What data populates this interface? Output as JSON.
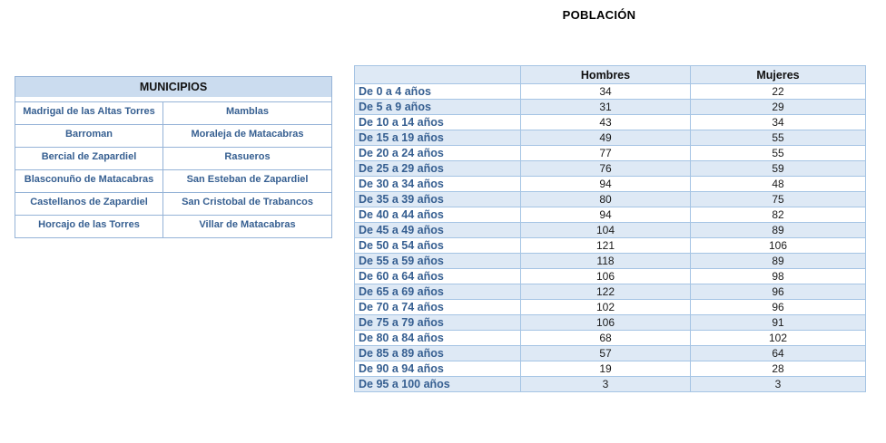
{
  "title": "POBLACIÓN",
  "municipios_table": {
    "header": "MUNICIPIOS",
    "rows": [
      [
        "Madrigal de las Altas Torres",
        "Mamblas"
      ],
      [
        "Barroman",
        "Moraleja de Matacabras"
      ],
      [
        "Bercial de Zapardiel",
        "Rasueros"
      ],
      [
        "Blasconuño de Matacabras",
        "San Esteban de Zapardiel"
      ],
      [
        "Castellanos de Zapardiel",
        "San Cristobal de Trabancos"
      ],
      [
        "Horcajo de las Torres",
        "Villar de Matacabras"
      ]
    ]
  },
  "population_table": {
    "columns": [
      "",
      "Hombres",
      "Mujeres"
    ],
    "rows": [
      {
        "age": "De 0 a 4 años",
        "hombres": "34",
        "mujeres": "22"
      },
      {
        "age": "De 5 a 9 años",
        "hombres": "31",
        "mujeres": "29"
      },
      {
        "age": "De 10 a 14 años",
        "hombres": "43",
        "mujeres": "34"
      },
      {
        "age": "De 15 a 19 años",
        "hombres": "49",
        "mujeres": "55"
      },
      {
        "age": "De 20 a 24 años",
        "hombres": "77",
        "mujeres": "55"
      },
      {
        "age": "De 25 a 29 años",
        "hombres": "76",
        "mujeres": "59"
      },
      {
        "age": "De 30 a 34 años",
        "hombres": "94",
        "mujeres": "48"
      },
      {
        "age": "De 35 a 39 años",
        "hombres": "80",
        "mujeres": "75"
      },
      {
        "age": "De 40 a 44 años",
        "hombres": "94",
        "mujeres": "82"
      },
      {
        "age": "De 45 a 49 años",
        "hombres": "104",
        "mujeres": "89"
      },
      {
        "age": "De 50 a 54 años",
        "hombres": "121",
        "mujeres": "106"
      },
      {
        "age": "De 55 a 59 años",
        "hombres": "118",
        "mujeres": "89"
      },
      {
        "age": "De 60 a 64 años",
        "hombres": "106",
        "mujeres": "98"
      },
      {
        "age": "De 65 a 69 años",
        "hombres": "122",
        "mujeres": "96"
      },
      {
        "age": "De 70 a 74 años",
        "hombres": "102",
        "mujeres": "96"
      },
      {
        "age": "De 75 a 79 años",
        "hombres": "106",
        "mujeres": "91"
      },
      {
        "age": "De 80 a 84 años",
        "hombres": "68",
        "mujeres": "102"
      },
      {
        "age": "De 85 a 89 años",
        "hombres": "57",
        "mujeres": "64"
      },
      {
        "age": "De 90 a 94 años",
        "hombres": "19",
        "mujeres": "28"
      },
      {
        "age": "De 95 a 100 años",
        "hombres": "3",
        "mujeres": "3"
      }
    ]
  },
  "colors": {
    "blue_text": "#365F91",
    "municipios_header_fill": "#CBDCEF",
    "municipios_border": "#95B3D7",
    "population_band_fill": "#DEE9F5",
    "population_border": "#A5C4E4"
  }
}
